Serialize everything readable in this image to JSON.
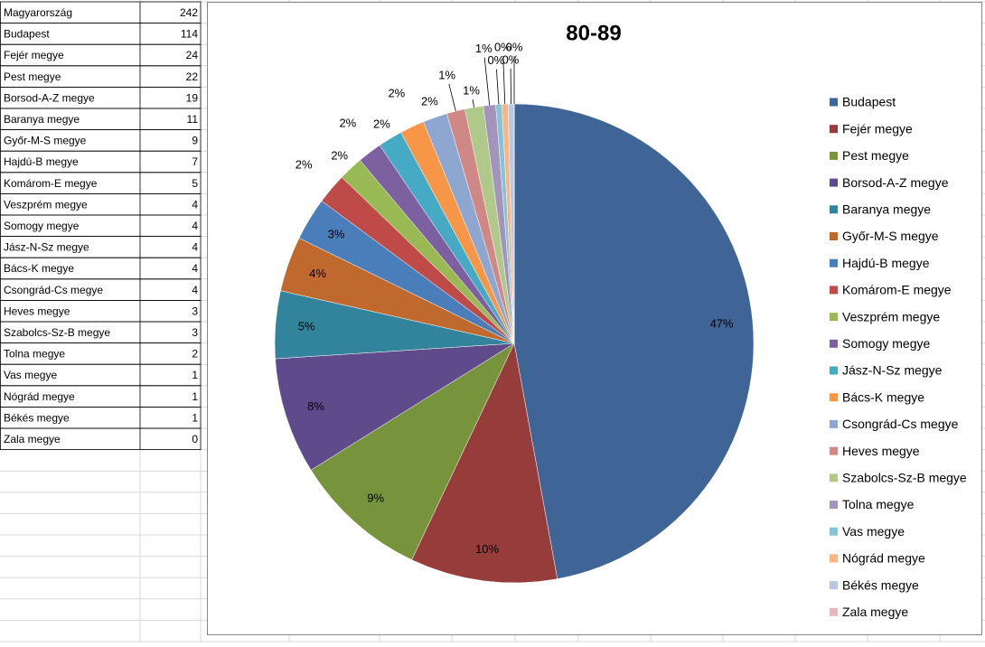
{
  "table": {
    "rows": [
      [
        "Magyarország",
        242
      ],
      [
        "Budapest",
        114
      ],
      [
        "Fejér megye",
        24
      ],
      [
        "Pest megye",
        22
      ],
      [
        "Borsod-A-Z megye",
        19
      ],
      [
        "Baranya megye",
        11
      ],
      [
        "Győr-M-S megye",
        9
      ],
      [
        "Hajdú-B megye",
        7
      ],
      [
        "Komárom-E megye",
        5
      ],
      [
        "Veszprém megye",
        4
      ],
      [
        "Somogy megye",
        4
      ],
      [
        "Jász-N-Sz megye",
        4
      ],
      [
        "Bács-K megye",
        4
      ],
      [
        "Csongrád-Cs megye",
        4
      ],
      [
        "Heves megye",
        3
      ],
      [
        "Szabolcs-Sz-B megye",
        3
      ],
      [
        "Tolna megye",
        2
      ],
      [
        "Vas megye",
        1
      ],
      [
        "Nógrád megye",
        1
      ],
      [
        "Békés megye",
        1
      ],
      [
        "Zala megye",
        0
      ]
    ]
  },
  "chart_data": {
    "type": "pie",
    "title": "80-89",
    "categories": [
      "Budapest",
      "Fejér megye",
      "Pest megye",
      "Borsod-A-Z megye",
      "Baranya megye",
      "Győr-M-S megye",
      "Hajdú-B megye",
      "Komárom-E megye",
      "Veszprém megye",
      "Somogy megye",
      "Jász-N-Sz megye",
      "Bács-K megye",
      "Csongrád-Cs megye",
      "Heves megye",
      "Szabolcs-Sz-B megye",
      "Tolna megye",
      "Vas megye",
      "Nógrád megye",
      "Békés megye",
      "Zala megye"
    ],
    "values": [
      47.11,
      9.92,
      9.09,
      7.85,
      4.55,
      3.72,
      2.89,
      2.07,
      1.65,
      1.65,
      1.65,
      1.65,
      1.65,
      1.24,
      1.24,
      0.83,
      0.41,
      0.41,
      0.41,
      0
    ],
    "value_labels": [
      "47%",
      "10%",
      "9%",
      "8%",
      "5%",
      "4%",
      "3%",
      "2%",
      "2%",
      "2%",
      "2%",
      "2%",
      "2%",
      "1%",
      "1%",
      "1%",
      "0%",
      "0%",
      "0%",
      "0%"
    ],
    "colors": [
      "#3f6496",
      "#963c3a",
      "#77933c",
      "#5f4b8b",
      "#31849b",
      "#c0692f",
      "#4a7ebb",
      "#be4b48",
      "#98b954",
      "#7d60a0",
      "#46aac5",
      "#f79646",
      "#8ea7d0",
      "#d08887",
      "#b0c98b",
      "#a394bc",
      "#85c3d6",
      "#f9b483",
      "#b9c8e2",
      "#e4b9b9"
    ],
    "legend": "right"
  }
}
